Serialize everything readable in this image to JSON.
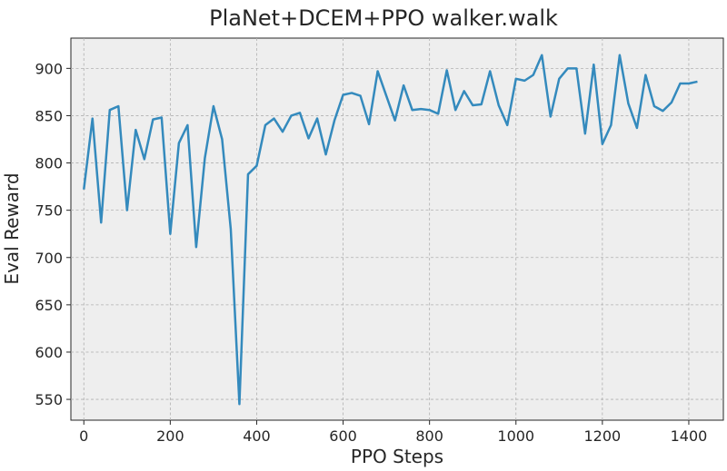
{
  "chart_data": {
    "type": "line",
    "title": "PlaNet+DCEM+PPO walker.walk",
    "xlabel": "PPO Steps",
    "ylabel": "Eval Reward",
    "xlim": [
      -30,
      1480
    ],
    "ylim": [
      528,
      932
    ],
    "xticks": [
      0,
      200,
      400,
      600,
      800,
      1000,
      1200,
      1400
    ],
    "yticks": [
      550,
      600,
      650,
      700,
      750,
      800,
      850,
      900
    ],
    "grid": true,
    "colors": {
      "line": "#348abd",
      "background": "#eeeeee"
    },
    "series": [
      {
        "name": "eval_reward",
        "x": [
          0,
          20,
          40,
          60,
          80,
          100,
          120,
          140,
          160,
          180,
          200,
          220,
          240,
          260,
          280,
          300,
          320,
          340,
          360,
          380,
          400,
          420,
          440,
          460,
          480,
          500,
          520,
          540,
          560,
          580,
          600,
          620,
          640,
          660,
          680,
          700,
          720,
          740,
          760,
          780,
          800,
          820,
          840,
          860,
          880,
          900,
          920,
          940,
          960,
          980,
          1000,
          1020,
          1040,
          1060,
          1080,
          1100,
          1120,
          1140,
          1160,
          1180,
          1200,
          1220,
          1240,
          1260,
          1280,
          1300,
          1320,
          1340,
          1360,
          1380,
          1400,
          1420
        ],
        "y": [
          772,
          847,
          737,
          856,
          860,
          750,
          835,
          804,
          846,
          848,
          725,
          821,
          840,
          711,
          805,
          860,
          825,
          730,
          545,
          788,
          797,
          840,
          847,
          833,
          850,
          853,
          826,
          847,
          809,
          845,
          872,
          874,
          871,
          841,
          897,
          871,
          845,
          882,
          856,
          857,
          856,
          852,
          898,
          856,
          876,
          861,
          862,
          897,
          861,
          840,
          889,
          887,
          893,
          914,
          849,
          889,
          900,
          900,
          831,
          904,
          820,
          840,
          914,
          863,
          837,
          893,
          860,
          855,
          864,
          884,
          884,
          886
        ]
      }
    ]
  }
}
